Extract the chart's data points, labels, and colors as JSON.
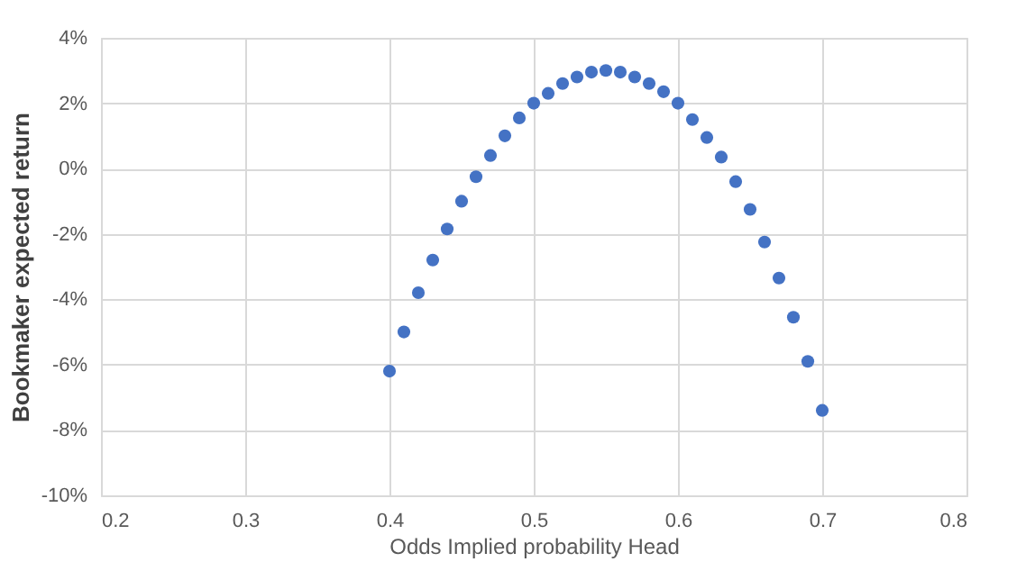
{
  "chart_data": {
    "type": "scatter",
    "xlabel": "Odds Implied probability Head",
    "ylabel": "Bookmaker expected return",
    "x": [
      0.4,
      0.41,
      0.42,
      0.43,
      0.44,
      0.45,
      0.46,
      0.47,
      0.48,
      0.49,
      0.5,
      0.51,
      0.52,
      0.53,
      0.54,
      0.55,
      0.56,
      0.57,
      0.58,
      0.59,
      0.6,
      0.61,
      0.62,
      0.63,
      0.64,
      0.65,
      0.66,
      0.67,
      0.68,
      0.69,
      0.7
    ],
    "series": [
      {
        "color": "#4472c4",
        "values": [
          -6.2,
          -5.0,
          -3.8,
          -2.8,
          -1.85,
          -1.0,
          -0.25,
          0.4,
          1.0,
          1.55,
          2.0,
          2.3,
          2.6,
          2.8,
          2.95,
          3.0,
          2.95,
          2.8,
          2.6,
          2.35,
          2.0,
          1.5,
          0.95,
          0.35,
          -0.4,
          -1.25,
          -2.25,
          -3.35,
          -4.55,
          -5.9,
          -7.4
        ]
      }
    ],
    "xlim": [
      0.2,
      0.8
    ],
    "xticks": [
      0.2,
      0.3,
      0.4,
      0.5,
      0.6,
      0.7,
      0.8
    ],
    "ylim": [
      -10,
      4
    ],
    "yticks": [
      {
        "value": -10,
        "label": "-10%"
      },
      {
        "value": -8,
        "label": "-8%"
      },
      {
        "value": -6,
        "label": "-6%"
      },
      {
        "value": -4,
        "label": "-4%"
      },
      {
        "value": -2,
        "label": "-2%"
      },
      {
        "value": 0,
        "label": "0%"
      },
      {
        "value": 2,
        "label": "2%"
      },
      {
        "value": 4,
        "label": "4%"
      }
    ],
    "grid": true,
    "marker": "circle",
    "legend": false
  }
}
